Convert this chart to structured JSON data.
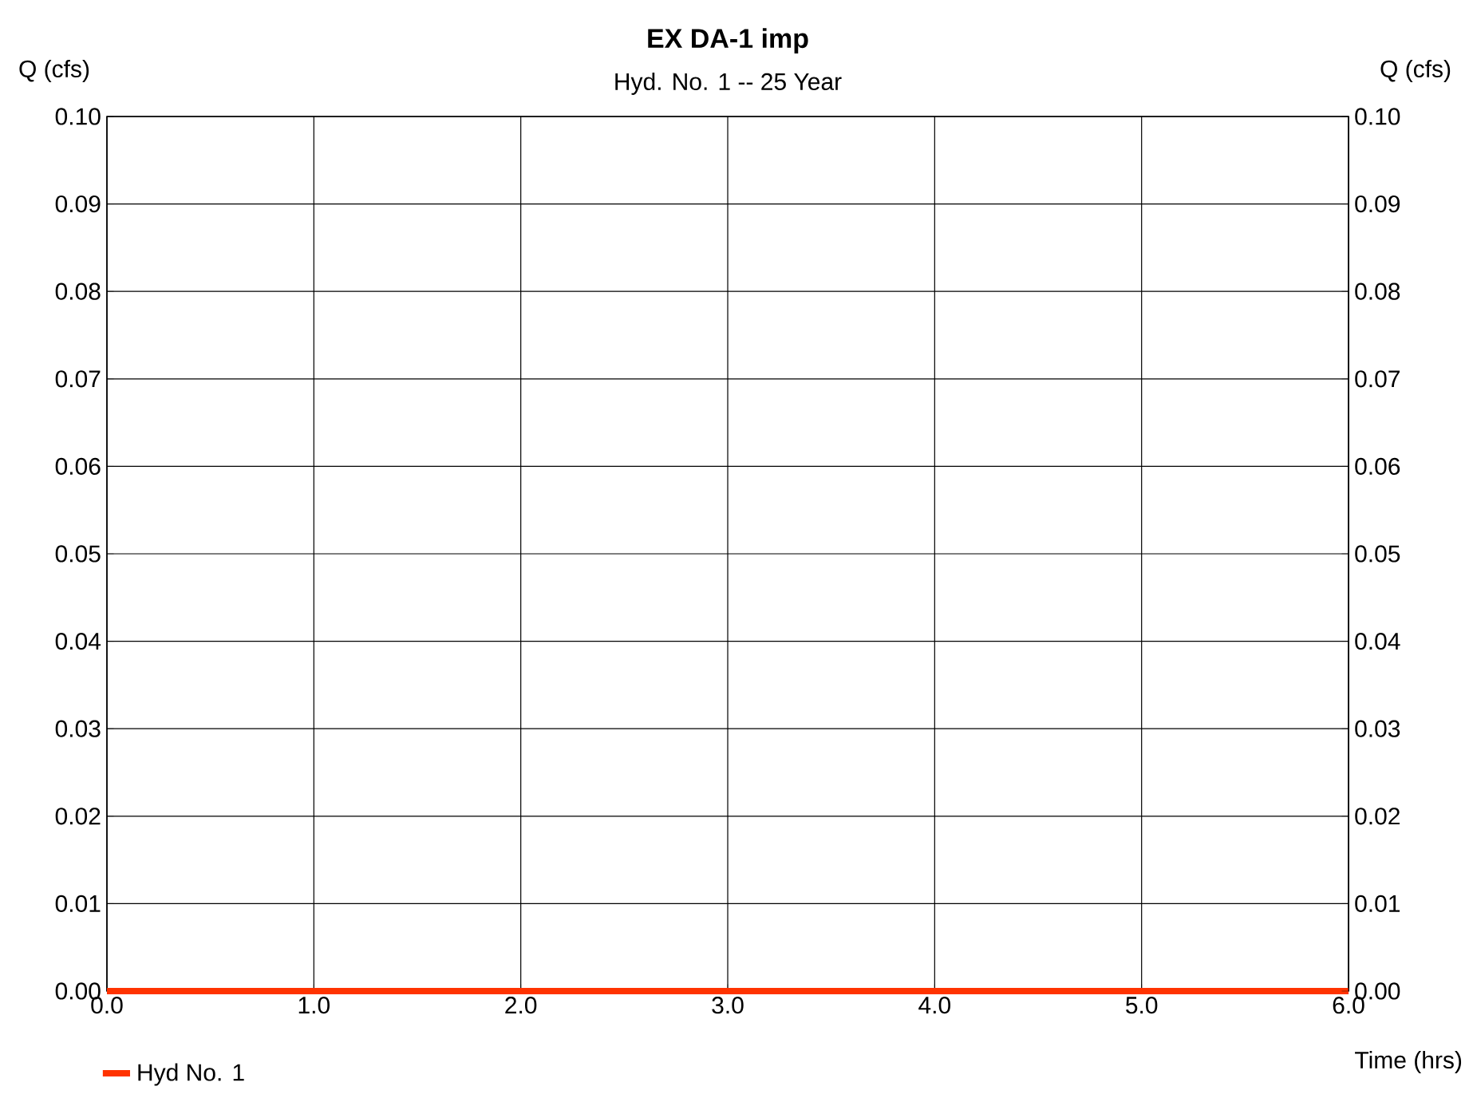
{
  "chart_data": {
    "type": "line",
    "title": "EX DA-1 imp",
    "subtitle": "Hyd. No. 1 -- 25 Year",
    "xlabel": "Time (hrs)",
    "ylabel": "Q (cfs)",
    "y2label": "Q (cfs)",
    "series": [
      {
        "name": "Hyd No. 1",
        "color": "#ff3300",
        "x": [
          0,
          6
        ],
        "values": [
          0,
          0
        ]
      }
    ],
    "xlim": [
      0,
      6
    ],
    "xticks": [
      {
        "value": 0,
        "label": "0.0"
      },
      {
        "value": 1,
        "label": "1.0"
      },
      {
        "value": 2,
        "label": "2.0"
      },
      {
        "value": 3,
        "label": "3.0"
      },
      {
        "value": 4,
        "label": "4.0"
      },
      {
        "value": 5,
        "label": "5.0"
      },
      {
        "value": 6,
        "label": "6.0"
      }
    ],
    "ylim": [
      0,
      0.1
    ],
    "yticks": [
      {
        "value": 0,
        "label": "0.00"
      },
      {
        "value": 0.01,
        "label": "0.01"
      },
      {
        "value": 0.02,
        "label": "0.02"
      },
      {
        "value": 0.03,
        "label": "0.03"
      },
      {
        "value": 0.04,
        "label": "0.04"
      },
      {
        "value": 0.05,
        "label": "0.05"
      },
      {
        "value": 0.06,
        "label": "0.06"
      },
      {
        "value": 0.07,
        "label": "0.07"
      },
      {
        "value": 0.08,
        "label": "0.08"
      },
      {
        "value": 0.09,
        "label": "0.09"
      },
      {
        "value": 0.1,
        "label": "0.10"
      }
    ],
    "y2lim": [
      0,
      0.1
    ],
    "y2ticks": [
      {
        "value": 0,
        "label": "0.00"
      },
      {
        "value": 0.01,
        "label": "0.01"
      },
      {
        "value": 0.02,
        "label": "0.02"
      },
      {
        "value": 0.03,
        "label": "0.03"
      },
      {
        "value": 0.04,
        "label": "0.04"
      },
      {
        "value": 0.05,
        "label": "0.05"
      },
      {
        "value": 0.06,
        "label": "0.06"
      },
      {
        "value": 0.07,
        "label": "0.07"
      },
      {
        "value": 0.08,
        "label": "0.08"
      },
      {
        "value": 0.09,
        "label": "0.09"
      },
      {
        "value": 0.1,
        "label": "0.10"
      }
    ],
    "grid": true,
    "legend": "bottom left",
    "marker": "none",
    "line_style": "solid"
  }
}
